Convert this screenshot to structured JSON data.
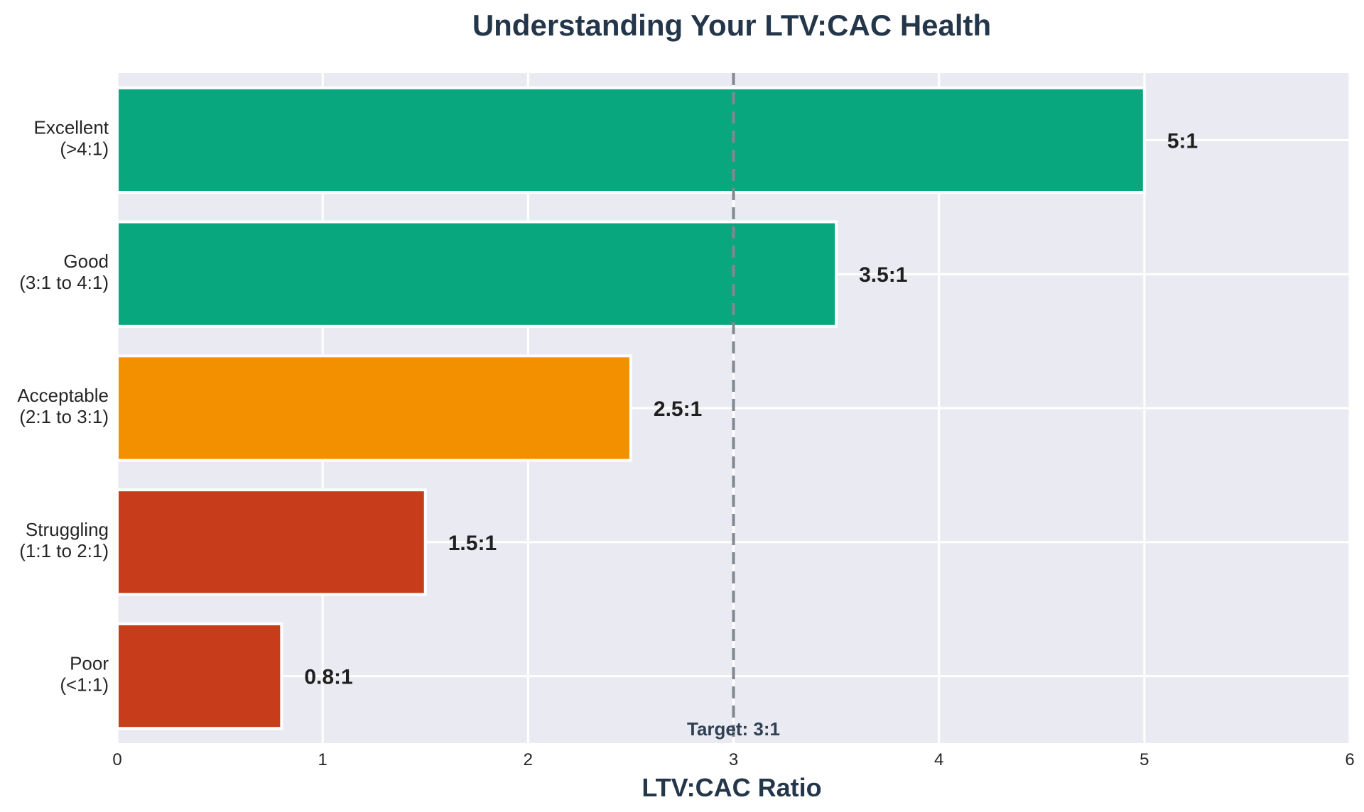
{
  "chart_data": {
    "type": "bar",
    "orientation": "horizontal",
    "title": "Understanding Your LTV:CAC Health",
    "xlabel": "LTV:CAC Ratio",
    "ylabel": "",
    "xlim": [
      0,
      6
    ],
    "xticks": [
      "0",
      "1",
      "2",
      "3",
      "4",
      "5",
      "6"
    ],
    "grid": true,
    "categories": [
      [
        "Excellent",
        "(>4:1)"
      ],
      [
        "Good",
        "(3:1 to 4:1)"
      ],
      [
        "Acceptable",
        "(2:1 to 3:1)"
      ],
      [
        "Struggling",
        "(1:1 to 2:1)"
      ],
      [
        "Poor",
        "(<1:1)"
      ]
    ],
    "values": [
      5,
      3.5,
      2.5,
      1.5,
      0.8
    ],
    "value_labels": [
      "5:1",
      "3.5:1",
      "2.5:1",
      "1.5:1",
      "0.8:1"
    ],
    "bar_colors": [
      "#08a77e",
      "#08a77e",
      "#f39000",
      "#c73c1a",
      "#c73c1a"
    ],
    "reference_line": {
      "value": 3,
      "label": "Target: 3:1",
      "color": "#808890"
    },
    "colors": {
      "plot_background": "#eaeaf2",
      "grid": "#ffffff",
      "title": "#24364a",
      "axis_text": "#262626"
    }
  }
}
